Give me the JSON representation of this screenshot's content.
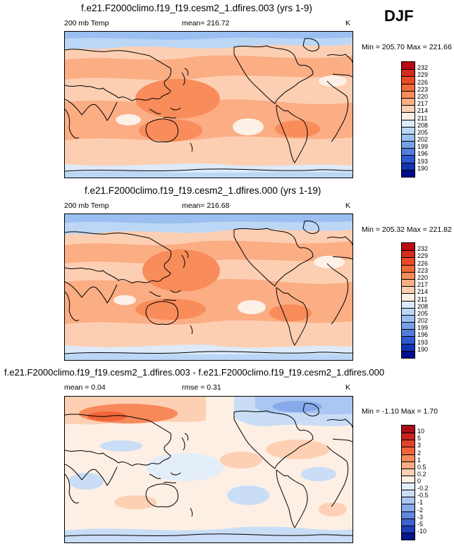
{
  "season": "DJF",
  "panels": [
    {
      "title": "f.e21.F2000climo.f19_f19.cesm2_1.dfires.003 (yrs 1-9)",
      "variable": "200 mb Temp",
      "stat_text": "mean= 216.72",
      "stat2_text": "",
      "units": "K",
      "minmax": "Min = 205.70 Max = 221.66",
      "colorbar_labels": [
        "232",
        "229",
        "226",
        "223",
        "220",
        "217",
        "214",
        "211",
        "208",
        "205",
        "202",
        "199",
        "196",
        "193",
        "190"
      ],
      "colorbar_colors": [
        "#b80b12",
        "#d52b1c",
        "#ea4a27",
        "#f26a3a",
        "#f88c5a",
        "#fbad84",
        "#fdcfb2",
        "#fdf0e6",
        "#dceafa",
        "#bcd6f6",
        "#9abff0",
        "#779fe6",
        "#527ddc",
        "#2e59d0",
        "#1234b4",
        "#000d8c"
      ]
    },
    {
      "title": "f.e21.F2000climo.f19_f19.cesm2_1.dfires.000 (yrs 1-19)",
      "variable": "200 mb Temp",
      "stat_text": "mean= 216.68",
      "stat2_text": "",
      "units": "K",
      "minmax": "Min = 205.32 Max = 221.82",
      "colorbar_labels": [
        "232",
        "229",
        "226",
        "223",
        "220",
        "217",
        "214",
        "211",
        "208",
        "205",
        "202",
        "199",
        "196",
        "193",
        "190"
      ],
      "colorbar_colors": [
        "#b80b12",
        "#d52b1c",
        "#ea4a27",
        "#f26a3a",
        "#f88c5a",
        "#fbad84",
        "#fdcfb2",
        "#fdf0e6",
        "#dceafa",
        "#bcd6f6",
        "#9abff0",
        "#779fe6",
        "#527ddc",
        "#2e59d0",
        "#1234b4",
        "#000d8c"
      ]
    },
    {
      "title": "f.e21.F2000climo.f19_f19.cesm2_1.dfires.003 - f.e21.F2000climo.f19_f19.cesm2_1.dfires.000",
      "variable": "",
      "stat_text": "mean =   0.04",
      "stat2_text": "rmse =   0.31",
      "units": "K",
      "minmax": "Min =  -1.10 Max =   1.70",
      "colorbar_labels": [
        "10",
        "5",
        "3",
        "2",
        "1",
        "0.5",
        "0.2",
        "0",
        "-0.2",
        "-0.5",
        "-1",
        "-2",
        "-3",
        "-5",
        "-10"
      ],
      "colorbar_colors": [
        "#a50f15",
        "#c8261d",
        "#e2432a",
        "#f0653a",
        "#f8895a",
        "#fbac84",
        "#fdd0b4",
        "#fdefe4",
        "#e4eef9",
        "#c9ddf6",
        "#a9c7f1",
        "#86a9e8",
        "#6187de",
        "#3d63d2",
        "#1d3eb8",
        "#05158c"
      ]
    }
  ],
  "chart_data": [
    {
      "type": "heatmap",
      "title": "f.e21.F2000climo.f19_f19.cesm2_1.dfires.003 (yrs 1-9)",
      "variable": "200 mb Temp",
      "units": "K",
      "mean": 216.72,
      "min": 205.7,
      "max": 221.66,
      "levels": [
        190,
        193,
        196,
        199,
        202,
        205,
        208,
        211,
        214,
        217,
        220,
        223,
        226,
        229,
        232
      ]
    },
    {
      "type": "heatmap",
      "title": "f.e21.F2000climo.f19_f19.cesm2_1.dfires.000 (yrs 1-19)",
      "variable": "200 mb Temp",
      "units": "K",
      "mean": 216.68,
      "min": 205.32,
      "max": 221.82,
      "levels": [
        190,
        193,
        196,
        199,
        202,
        205,
        208,
        211,
        214,
        217,
        220,
        223,
        226,
        229,
        232
      ]
    },
    {
      "type": "heatmap",
      "title": "f.e21.F2000climo.f19_f19.cesm2_1.dfires.003 - f.e21.F2000climo.f19_f19.cesm2_1.dfires.000",
      "units": "K",
      "mean": 0.04,
      "rmse": 0.31,
      "min": -1.1,
      "max": 1.7,
      "levels": [
        -10,
        -5,
        -3,
        -2,
        -1,
        -0.5,
        -0.2,
        0,
        0.2,
        0.5,
        1,
        2,
        3,
        5,
        10
      ]
    }
  ]
}
